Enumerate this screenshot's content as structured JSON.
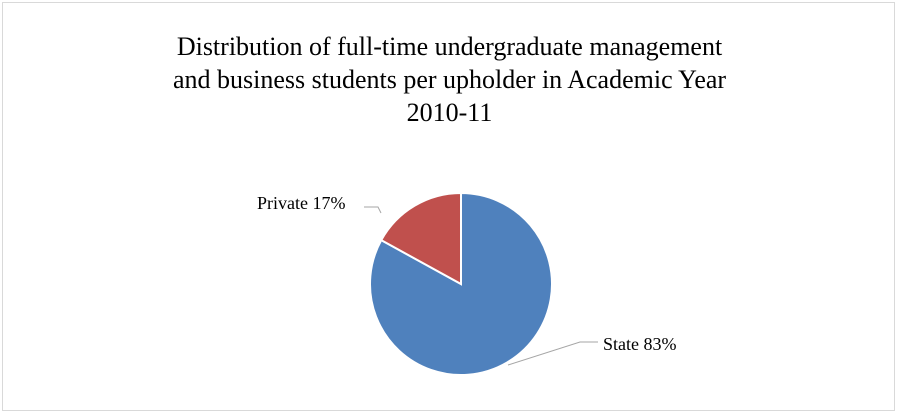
{
  "chart_data": {
    "type": "pie",
    "title_lines": [
      "Distribution of full-time undergraduate management",
      "and business students per upholder in Academic Year",
      "2010-11"
    ],
    "slices": [
      {
        "label": "State",
        "value": 83,
        "value_text": "83%",
        "color": "#4f81bd"
      },
      {
        "label": "Private",
        "value": 17,
        "value_text": "17%",
        "color": "#c0504d"
      }
    ]
  }
}
